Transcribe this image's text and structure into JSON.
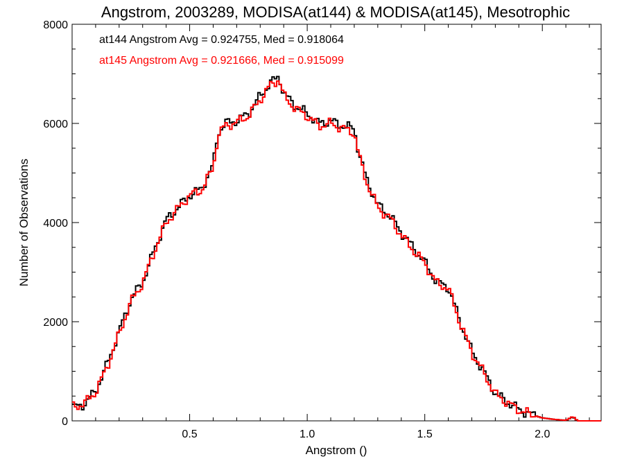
{
  "chart_data": {
    "type": "line",
    "title": "Angstrom, 2003289, MODISA(at144) & MODISA(at145), Mesotrophic",
    "xlabel": "Angstrom ()",
    "ylabel": "Number of Observations",
    "xlim": [
      0.0,
      2.25
    ],
    "ylim": [
      0,
      8000
    ],
    "xticks": [
      0.5,
      1.0,
      1.5,
      2.0
    ],
    "xtick_labels": [
      "0.5",
      "1.0",
      "1.5",
      "2.0"
    ],
    "yticks": [
      0,
      2000,
      4000,
      6000,
      8000
    ],
    "ytick_labels": [
      "0",
      "2000",
      "4000",
      "6000",
      "8000"
    ],
    "grid": false,
    "step": true,
    "annotations": [
      {
        "text": "at144 Angstrom Avg = 0.924755, Med = 0.918064",
        "color": "#000000"
      },
      {
        "text": "at145 Angstrom Avg = 0.921666, Med = 0.915099",
        "color": "#ff0000"
      }
    ],
    "series": [
      {
        "color": "#000000",
        "x": [
          0.0,
          0.05,
          0.1,
          0.15,
          0.2,
          0.25,
          0.3,
          0.35,
          0.4,
          0.45,
          0.5,
          0.55,
          0.6,
          0.62,
          0.65,
          0.7,
          0.75,
          0.8,
          0.84,
          0.88,
          0.9,
          0.95,
          1.0,
          1.05,
          1.1,
          1.15,
          1.2,
          1.22,
          1.25,
          1.3,
          1.35,
          1.4,
          1.45,
          1.5,
          1.55,
          1.6,
          1.65,
          1.7,
          1.75,
          1.8,
          1.85,
          1.9,
          1.95,
          2.0,
          2.05,
          2.1,
          2.13,
          2.15,
          2.25
        ],
        "y": [
          260,
          330,
          600,
          1150,
          1800,
          2450,
          2800,
          3450,
          4050,
          4300,
          4550,
          4680,
          5150,
          5800,
          6000,
          6050,
          6200,
          6550,
          6800,
          6950,
          6600,
          6350,
          6200,
          6000,
          6050,
          5950,
          5900,
          5400,
          4900,
          4350,
          4150,
          3800,
          3500,
          3200,
          2800,
          2700,
          2000,
          1400,
          1000,
          550,
          380,
          230,
          130,
          60,
          30,
          10,
          80,
          0,
          0
        ]
      },
      {
        "color": "#ff0000",
        "x": [
          0.0,
          0.05,
          0.1,
          0.15,
          0.2,
          0.25,
          0.3,
          0.35,
          0.4,
          0.45,
          0.5,
          0.55,
          0.6,
          0.62,
          0.65,
          0.7,
          0.75,
          0.8,
          0.84,
          0.88,
          0.9,
          0.95,
          1.0,
          1.05,
          1.1,
          1.15,
          1.2,
          1.22,
          1.25,
          1.3,
          1.35,
          1.4,
          1.45,
          1.5,
          1.55,
          1.6,
          1.65,
          1.7,
          1.75,
          1.8,
          1.85,
          1.9,
          1.95,
          2.0,
          2.05,
          2.1,
          2.13,
          2.15,
          2.25
        ],
        "y": [
          280,
          340,
          580,
          1100,
          1750,
          2400,
          2780,
          3420,
          4000,
          4280,
          4550,
          4650,
          5100,
          5750,
          5950,
          6020,
          6150,
          6480,
          6750,
          6900,
          6550,
          6300,
          6150,
          5950,
          6000,
          5900,
          5820,
          5350,
          4850,
          4300,
          4100,
          3750,
          3450,
          3180,
          2780,
          2680,
          1980,
          1380,
          980,
          540,
          370,
          220,
          130,
          60,
          30,
          10,
          90,
          0,
          0
        ]
      }
    ]
  }
}
